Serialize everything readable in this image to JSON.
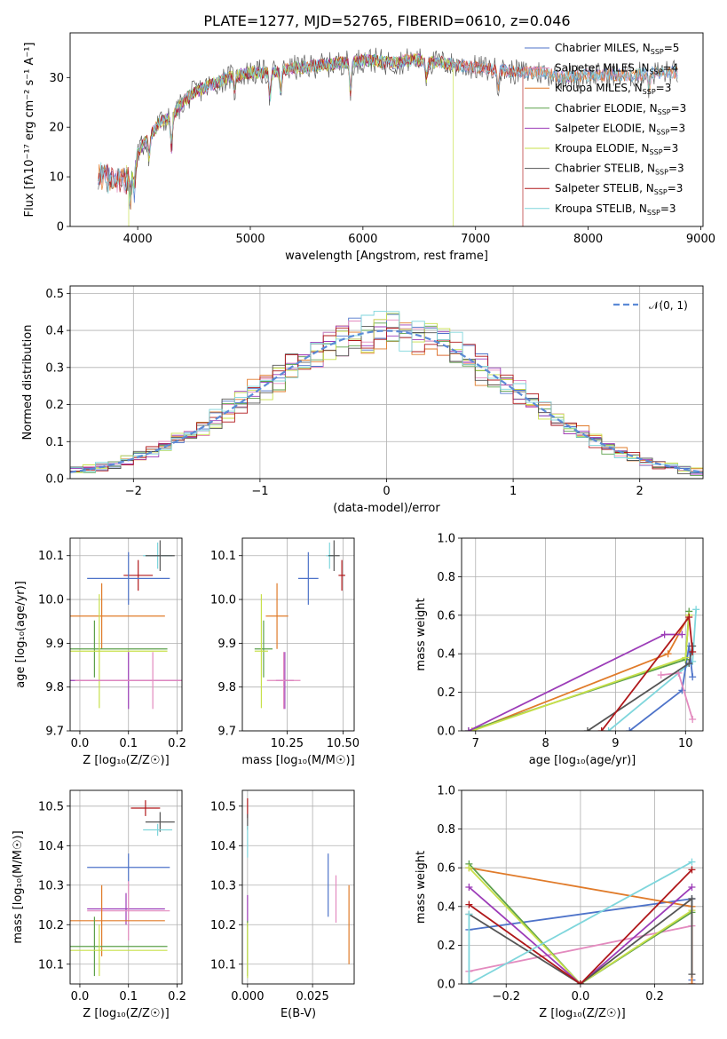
{
  "figure": {
    "title": "PLATE=1277, MJD=52765, FIBERID=0610, z=0.046"
  },
  "colors": {
    "Chabrier MILES": "#4e73c9",
    "Salpeter MILES": "#e38bbf",
    "Kroupa MILES": "#e07b2a",
    "Chabrier ELODIE": "#5ca04a",
    "Salpeter ELODIE": "#9c3cb8",
    "Kroupa ELODIE": "#c8e04a",
    "Chabrier STELIB": "#555555",
    "Salpeter STELIB": "#b0181b",
    "Kroupa STELIB": "#7fd6dc",
    "normal": "#5b8ad6"
  },
  "chart_data": [
    {
      "type": "line",
      "id": "spectrum",
      "title": "PLATE=1277, MJD=52765, FIBERID=0610, z=0.046",
      "xlabel": "wavelength [Angstrom, rest frame]",
      "ylabel": "Flux [fλ10⁻¹⁷ erg cm⁻² s⁻¹ A⁻¹]",
      "xlim": [
        3400,
        9020
      ],
      "ylim": [
        0,
        39
      ],
      "xticks": [
        4000,
        5000,
        6000,
        7000,
        8000,
        9000
      ],
      "yticks": [
        0,
        10,
        20,
        30
      ],
      "grid": false,
      "legend_position": "top-right",
      "legend": [
        {
          "name": "Chabrier MILES",
          "nssp": "5"
        },
        {
          "name": "Salpeter MILES",
          "nssp": "4"
        },
        {
          "name": "Kroupa MILES",
          "nssp": "3"
        },
        {
          "name": "Chabrier ELODIE",
          "nssp": "3"
        },
        {
          "name": "Salpeter ELODIE",
          "nssp": "3"
        },
        {
          "name": "Kroupa ELODIE",
          "nssp": "3"
        },
        {
          "name": "Chabrier STELIB",
          "nssp": "3"
        },
        {
          "name": "Salpeter STELIB",
          "nssp": "3"
        },
        {
          "name": "Kroupa STELIB",
          "nssp": "3"
        }
      ],
      "continuum": {
        "x": [
          3650,
          3700,
          3750,
          3800,
          3850,
          3900,
          3950,
          4000,
          4100,
          4200,
          4300,
          4400,
          4500,
          4600,
          4700,
          4800,
          4900,
          5000,
          5100,
          5200,
          5300,
          5400,
          5500,
          5600,
          5700,
          5800,
          5900,
          6000,
          6100,
          6200,
          6300,
          6400,
          6500,
          6600,
          6700,
          6800,
          7000,
          7200,
          7400,
          7600,
          7800,
          8000,
          8200,
          8400,
          8600,
          8800
        ],
        "y": [
          10,
          10.5,
          9.5,
          9,
          10,
          9.5,
          11,
          15,
          18,
          21,
          22,
          25,
          27,
          28,
          29,
          30,
          30.5,
          31,
          31,
          31,
          31.5,
          32,
          32,
          32.5,
          32.5,
          33,
          33,
          33.5,
          33.5,
          33,
          33,
          33.5,
          33.5,
          33,
          33,
          32.5,
          32,
          31.5,
          31,
          31,
          30,
          30.5,
          30.5,
          30.5,
          31,
          31
        ]
      },
      "absorption_lines": [
        {
          "x": 3933,
          "depth": 5
        },
        {
          "x": 3968,
          "depth": 5
        },
        {
          "x": 4102,
          "depth": 4
        },
        {
          "x": 4300,
          "depth": 6
        },
        {
          "x": 4861,
          "depth": 3
        },
        {
          "x": 5175,
          "depth": 5
        },
        {
          "x": 5270,
          "depth": 4
        },
        {
          "x": 5890,
          "depth": 6
        },
        {
          "x": 6563,
          "depth": 3
        },
        {
          "x": 7200,
          "depth": 3
        },
        {
          "x": 8542,
          "depth": 3
        }
      ],
      "dropouts": [
        {
          "series": "Kroupa ELODIE",
          "x": 3920
        },
        {
          "series": "Kroupa ELODIE",
          "x": 6800
        },
        {
          "series": "Salpeter STELIB",
          "x": 7420
        }
      ]
    },
    {
      "type": "bar",
      "id": "residuals",
      "xlabel": "(data-model)/error",
      "ylabel": "Normed distribution",
      "xlim": [
        -2.5,
        2.5
      ],
      "ylim": [
        0,
        0.52
      ],
      "xticks": [
        -2,
        -1,
        0,
        1,
        2
      ],
      "yticks": [
        0.0,
        0.1,
        0.2,
        0.3,
        0.4,
        0.5
      ],
      "grid": true,
      "bin_width": 0.1,
      "legend_position": "top-right",
      "legend": [
        "𝒩(0, 1)"
      ],
      "reference_curve": {
        "name": "𝒩(0, 1)",
        "mean": 0,
        "sigma": 1
      }
    },
    {
      "type": "scatter",
      "id": "age-vs-z",
      "xlabel": "Z [log₁₀(Z/Z☉)]",
      "ylabel": "age  [log₁₀(age/yr)]",
      "xlim": [
        -0.02,
        0.21
      ],
      "ylim": [
        9.7,
        10.14
      ],
      "xticks": [
        0.0,
        0.1,
        0.2
      ],
      "yticks": [
        9.7,
        9.8,
        9.9,
        10.0,
        10.1
      ],
      "grid": true,
      "points": [
        {
          "series": "Kroupa STELIB",
          "x": 0.16,
          "y": 10.1,
          "xerr": 0.03,
          "yerr": 0.03
        },
        {
          "series": "Chabrier STELIB",
          "x": 0.165,
          "y": 10.1,
          "xerr": 0.03,
          "yerr": 0.035
        },
        {
          "series": "Salpeter STELIB",
          "x": 0.12,
          "y": 10.055,
          "xerr": 0.03,
          "yerr": 0.035
        },
        {
          "series": "Chabrier MILES",
          "x": 0.1,
          "y": 10.048,
          "xerr": 0.085,
          "yerr": 0.06
        },
        {
          "series": "Kroupa MILES",
          "x": 0.045,
          "y": 9.962,
          "xerr": 0.13,
          "yerr": 0.075
        },
        {
          "series": "Chabrier ELODIE",
          "x": 0.03,
          "y": 9.887,
          "xerr": 0.15,
          "yerr": 0.065
        },
        {
          "series": "Kroupa ELODIE",
          "x": 0.04,
          "y": 9.882,
          "xerr": 0.14,
          "yerr": 0.13
        },
        {
          "series": "Salpeter ELODIE",
          "x": 0.1,
          "y": 9.815,
          "xerr": 0.12,
          "yerr": 0.065
        },
        {
          "series": "Salpeter MILES",
          "x": 0.15,
          "y": 9.815,
          "xerr": 0.16,
          "yerr": 0.065
        }
      ]
    },
    {
      "type": "scatter",
      "id": "age-vs-mass",
      "xlabel": "mass [log₁₀(M/M☉)]",
      "ylabel": "",
      "xlim": [
        10.05,
        10.55
      ],
      "ylim": [
        9.7,
        10.14
      ],
      "xticks": [
        10.25,
        10.5
      ],
      "yticks": [
        9.7,
        9.8,
        9.9,
        10.0,
        10.1
      ],
      "grid": true,
      "points": [
        {
          "series": "Kroupa STELIB",
          "x": 10.44,
          "y": 10.1,
          "xerr": 0.015,
          "yerr": 0.03
        },
        {
          "series": "Chabrier STELIB",
          "x": 10.46,
          "y": 10.1,
          "xerr": 0.025,
          "yerr": 0.035
        },
        {
          "series": "Salpeter STELIB",
          "x": 10.495,
          "y": 10.055,
          "xerr": 0.015,
          "yerr": 0.035
        },
        {
          "series": "Chabrier MILES",
          "x": 10.345,
          "y": 10.048,
          "xerr": 0.045,
          "yerr": 0.06
        },
        {
          "series": "Kroupa MILES",
          "x": 10.205,
          "y": 9.962,
          "xerr": 0.05,
          "yerr": 0.075
        },
        {
          "series": "Chabrier ELODIE",
          "x": 10.145,
          "y": 9.887,
          "xerr": 0.04,
          "yerr": 0.065
        },
        {
          "series": "Kroupa ELODIE",
          "x": 10.135,
          "y": 9.882,
          "xerr": 0.03,
          "yerr": 0.13
        },
        {
          "series": "Salpeter ELODIE",
          "x": 10.24,
          "y": 9.815,
          "xerr": 0.04,
          "yerr": 0.065
        },
        {
          "series": "Salpeter MILES",
          "x": 10.235,
          "y": 9.815,
          "xerr": 0.075,
          "yerr": 0.065
        }
      ]
    },
    {
      "type": "line",
      "id": "mass-weight-vs-age",
      "xlabel": "age  [log₁₀(age/yr)]",
      "ylabel": "mass weight",
      "xlim": [
        6.8,
        10.25
      ],
      "ylim": [
        0,
        1.0
      ],
      "xticks": [
        7,
        8,
        9,
        10
      ],
      "yticks": [
        0.0,
        0.2,
        0.4,
        0.6,
        0.8,
        1.0
      ],
      "grid": true,
      "series": [
        {
          "name": "Kroupa STELIB",
          "x": [
            8.9,
            10.1,
            10.15
          ],
          "y": [
            0.0,
            0.36,
            0.63
          ]
        },
        {
          "name": "Chabrier MILES",
          "x": [
            9.2,
            9.95,
            10.05,
            10.1
          ],
          "y": [
            0.0,
            0.21,
            0.44,
            0.28
          ]
        },
        {
          "name": "Salpeter MILES",
          "x": [
            9.65,
            9.9,
            10.1
          ],
          "y": [
            0.29,
            0.3,
            0.06
          ]
        },
        {
          "name": "Kroupa MILES",
          "x": [
            6.95,
            9.75,
            10.05
          ],
          "y": [
            0.0,
            0.4,
            0.6
          ]
        },
        {
          "name": "Chabrier ELODIE",
          "x": [
            6.9,
            10.0,
            10.05
          ],
          "y": [
            0.0,
            0.37,
            0.62
          ]
        },
        {
          "name": "Kroupa ELODIE",
          "x": [
            6.95,
            10.0,
            10.05
          ],
          "y": [
            0.0,
            0.38,
            0.6
          ]
        },
        {
          "name": "Salpeter ELODIE",
          "x": [
            6.9,
            9.7,
            9.95
          ],
          "y": [
            0.0,
            0.5,
            0.5
          ]
        },
        {
          "name": "Chabrier STELIB",
          "x": [
            8.6,
            10.05,
            10.1
          ],
          "y": [
            0.0,
            0.35,
            0.44
          ]
        },
        {
          "name": "Salpeter STELIB",
          "x": [
            8.8,
            10.05,
            10.1
          ],
          "y": [
            0.0,
            0.59,
            0.41
          ]
        }
      ]
    },
    {
      "type": "scatter",
      "id": "mass-vs-z",
      "xlabel": "Z [log₁₀(Z/Z☉)]",
      "ylabel": "mass [log₁₀(M/M☉)]",
      "xlim": [
        -0.02,
        0.21
      ],
      "ylim": [
        10.05,
        10.54
      ],
      "xticks": [
        0.0,
        0.1,
        0.2
      ],
      "yticks": [
        10.1,
        10.2,
        10.3,
        10.4,
        10.5
      ],
      "grid": true,
      "points": [
        {
          "series": "Salpeter STELIB",
          "x": 0.135,
          "y": 10.495,
          "xerr": 0.03,
          "yerr": 0.02
        },
        {
          "series": "Chabrier STELIB",
          "x": 0.165,
          "y": 10.46,
          "xerr": 0.03,
          "yerr": 0.025
        },
        {
          "series": "Kroupa STELIB",
          "x": 0.16,
          "y": 10.44,
          "xerr": 0.03,
          "yerr": 0.015
        },
        {
          "series": "Chabrier MILES",
          "x": 0.1,
          "y": 10.345,
          "xerr": 0.085,
          "yerr": 0.035
        },
        {
          "series": "Salpeter ELODIE",
          "x": 0.095,
          "y": 10.24,
          "xerr": 0.08,
          "yerr": 0.04
        },
        {
          "series": "Salpeter MILES",
          "x": 0.1,
          "y": 10.235,
          "xerr": 0.085,
          "yerr": 0.075
        },
        {
          "series": "Kroupa MILES",
          "x": 0.045,
          "y": 10.21,
          "xerr": 0.13,
          "yerr": 0.09
        },
        {
          "series": "Chabrier ELODIE",
          "x": 0.03,
          "y": 10.145,
          "xerr": 0.15,
          "yerr": 0.075
        },
        {
          "series": "Kroupa ELODIE",
          "x": 0.04,
          "y": 10.135,
          "xerr": 0.14,
          "yerr": 0.065
        }
      ]
    },
    {
      "type": "scatter",
      "id": "mass-vs-ebv",
      "xlabel": "E(B-V)",
      "ylabel": "",
      "xlim": [
        -0.002,
        0.041
      ],
      "ylim": [
        10.05,
        10.54
      ],
      "xticks": [
        0.0,
        0.025
      ],
      "yticks": [
        10.1,
        10.2,
        10.3,
        10.4,
        10.5
      ],
      "grid": true,
      "points": [
        {
          "series": "Salpeter STELIB",
          "x": 0.0,
          "y": 10.495,
          "xerr": 0.0,
          "yerr": 0.025
        },
        {
          "series": "Chabrier STELIB",
          "x": 0.0,
          "y": 10.46,
          "xerr": 0.0,
          "yerr": 0.02
        },
        {
          "series": "Kroupa STELIB",
          "x": 0.0,
          "y": 10.41,
          "xerr": 0.0,
          "yerr": 0.04
        },
        {
          "series": "Chabrier MILES",
          "x": 0.031,
          "y": 10.3,
          "xerr": 0.0,
          "yerr": 0.08
        },
        {
          "series": "Salpeter MILES",
          "x": 0.034,
          "y": 10.265,
          "xerr": 0.0,
          "yerr": 0.06
        },
        {
          "series": "Kroupa MILES",
          "x": 0.039,
          "y": 10.2,
          "xerr": 0.0,
          "yerr": 0.1
        },
        {
          "series": "Salpeter ELODIE",
          "x": 0.0,
          "y": 10.235,
          "xerr": 0.0,
          "yerr": 0.04
        },
        {
          "series": "Chabrier ELODIE",
          "x": 0.0,
          "y": 10.14,
          "xerr": 0.0,
          "yerr": 0.07
        },
        {
          "series": "Kroupa ELODIE",
          "x": 0.0,
          "y": 10.135,
          "xerr": 0.0,
          "yerr": 0.07
        }
      ]
    },
    {
      "type": "line",
      "id": "mass-weight-vs-z",
      "xlabel": "Z [log₁₀(Z/Z☉)]",
      "ylabel": "mass weight",
      "xlim": [
        -0.32,
        0.33
      ],
      "ylim": [
        0,
        1.0
      ],
      "xticks": [
        -0.2,
        0.0,
        0.2
      ],
      "yticks": [
        0.0,
        0.2,
        0.4,
        0.6,
        0.8,
        1.0
      ],
      "grid": true,
      "series": [
        {
          "name": "Chabrier MILES",
          "x": [
            -0.3,
            0.3,
            0.3,
            0.3
          ],
          "y": [
            0.28,
            0.44,
            0.02,
            0.0
          ]
        },
        {
          "name": "Salpeter MILES",
          "x": [
            -0.3,
            0.3,
            0.3
          ],
          "y": [
            0.065,
            0.3,
            0.0
          ]
        },
        {
          "name": "Kroupa MILES",
          "x": [
            -0.3,
            0.3,
            0.3
          ],
          "y": [
            0.6,
            0.4,
            0.0
          ]
        },
        {
          "name": "Chabrier ELODIE",
          "x": [
            -0.3,
            0.0,
            0.3
          ],
          "y": [
            0.62,
            0.0,
            0.37
          ]
        },
        {
          "name": "Kroupa ELODIE",
          "x": [
            -0.3,
            0.0,
            0.3
          ],
          "y": [
            0.6,
            0.0,
            0.38
          ]
        },
        {
          "name": "Salpeter ELODIE",
          "x": [
            -0.3,
            0.0,
            0.3
          ],
          "y": [
            0.5,
            0.0,
            0.5
          ]
        },
        {
          "name": "Chabrier STELIB",
          "x": [
            -0.3,
            0.0,
            0.3,
            0.3
          ],
          "y": [
            0.36,
            0.0,
            0.44,
            0.05
          ]
        },
        {
          "name": "Salpeter STELIB",
          "x": [
            -0.3,
            0.0,
            0.3
          ],
          "y": [
            0.41,
            0.0,
            0.59
          ]
        },
        {
          "name": "Kroupa STELIB",
          "x": [
            -0.3,
            -0.3,
            0.3
          ],
          "y": [
            0.36,
            0.0,
            0.63
          ]
        }
      ]
    }
  ]
}
